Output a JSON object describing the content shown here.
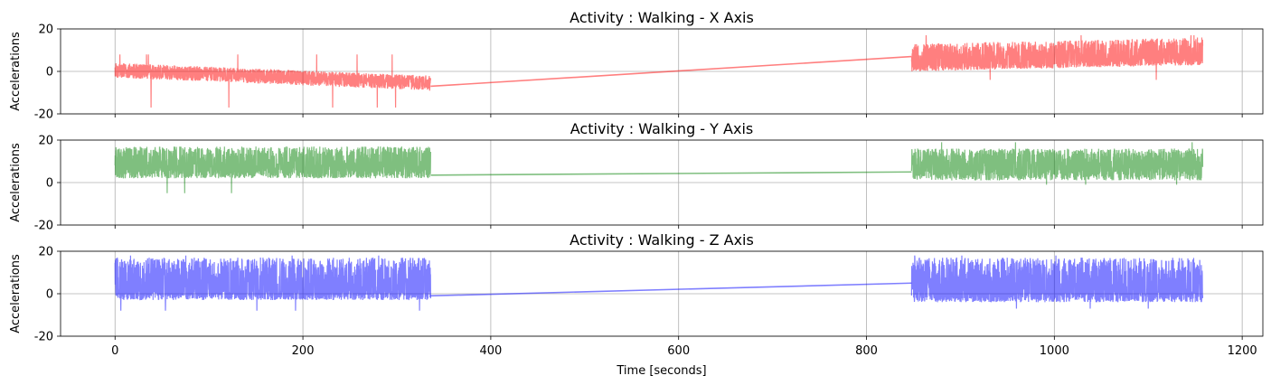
{
  "chart_data": [
    {
      "type": "line",
      "title": "Activity : Walking - X Axis",
      "xlabel": "",
      "ylabel": "Accelerations",
      "ylim": [
        -20,
        20
      ],
      "yticks": [
        -20,
        0,
        20
      ],
      "xlim": [
        -58,
        1222
      ],
      "xticks": [
        0,
        200,
        400,
        600,
        800,
        1000,
        1200
      ],
      "show_xticklabels": false,
      "grid": true,
      "color": "#ff0000",
      "alpha": 0.5,
      "segments": [
        {
          "x_start": 0,
          "x_end": 336,
          "start_mean": 1,
          "end_mean": -5,
          "noise_low": -4,
          "noise_high": 3,
          "min": -17,
          "max": 8
        },
        {
          "x_start": 848,
          "x_end": 1158,
          "start_mean": 4,
          "end_mean": 7,
          "noise_low": -4,
          "noise_high": 9,
          "min": -4,
          "max": 17
        }
      ],
      "connector": {
        "x": [
          336,
          848
        ],
        "y": [
          -7,
          7
        ]
      }
    },
    {
      "type": "line",
      "title": "Activity : Walking - Y Axis",
      "xlabel": "",
      "ylabel": "Accelerations",
      "ylim": [
        -20,
        20
      ],
      "yticks": [
        -20,
        0,
        20
      ],
      "xlim": [
        -58,
        1222
      ],
      "xticks": [
        0,
        200,
        400,
        600,
        800,
        1000,
        1200
      ],
      "show_xticklabels": false,
      "grid": true,
      "color": "#008000",
      "alpha": 0.5,
      "segments": [
        {
          "x_start": 0,
          "x_end": 336,
          "start_mean": 8,
          "end_mean": 8,
          "noise_low": -6,
          "noise_high": 9,
          "min": -5,
          "max": 19
        },
        {
          "x_start": 848,
          "x_end": 1158,
          "start_mean": 8,
          "end_mean": 8,
          "noise_low": -7,
          "noise_high": 8,
          "min": -1,
          "max": 19
        }
      ],
      "connector": {
        "x": [
          336,
          848
        ],
        "y": [
          3.5,
          5
        ]
      }
    },
    {
      "type": "line",
      "title": "Activity : Walking - Z Axis",
      "xlabel": "Time [seconds]",
      "ylabel": "Accelerations",
      "ylim": [
        -20,
        20
      ],
      "yticks": [
        -20,
        0,
        20
      ],
      "xlim": [
        -58,
        1222
      ],
      "xticks": [
        0,
        200,
        400,
        600,
        800,
        1000,
        1200
      ],
      "show_xticklabels": true,
      "grid": true,
      "color": "#0000ff",
      "alpha": 0.5,
      "segments": [
        {
          "x_start": 0,
          "x_end": 336,
          "start_mean": 2,
          "end_mean": 2,
          "noise_low": -5,
          "noise_high": 15,
          "min": -8,
          "max": 18
        },
        {
          "x_start": 848,
          "x_end": 1158,
          "start_mean": 2,
          "end_mean": 2,
          "noise_low": -6,
          "noise_high": 15,
          "min": -7,
          "max": 18
        }
      ],
      "connector": {
        "x": [
          336,
          848
        ],
        "y": [
          -1,
          5
        ]
      }
    }
  ]
}
